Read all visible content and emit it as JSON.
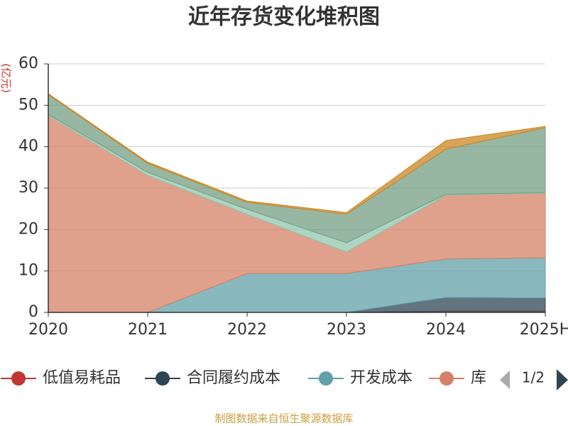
{
  "chart_data": {
    "type": "stacked_area",
    "title": "近年存货变化堆积图",
    "y_label": "(亿元)",
    "categories": [
      "2020",
      "2021",
      "2022",
      "2023",
      "2024",
      "2025H"
    ],
    "ylim": [
      0,
      60
    ],
    "yticks": [
      0,
      10,
      20,
      30,
      40,
      50,
      60
    ],
    "grid": true,
    "series": [
      {
        "name": "低值易耗品",
        "color": "#c23531",
        "values": [
          0,
          0,
          0,
          0,
          0.3,
          0.3
        ]
      },
      {
        "name": "合同履约成本",
        "color": "#2f4554",
        "values": [
          0,
          0,
          0,
          0,
          3.3,
          3.2
        ]
      },
      {
        "name": "开发成本",
        "color": "#61a0a8",
        "values": [
          0,
          0,
          9.4,
          9.4,
          9.3,
          9.7
        ]
      },
      {
        "name": "库",
        "color": "#d48265",
        "values": [
          47.5,
          33.1,
          14.3,
          5.2,
          15.4,
          15.6
        ]
      },
      {
        "color": "#91c7ae",
        "values": [
          0.3,
          0.7,
          1.2,
          2.2,
          0.2,
          0.1
        ]
      },
      {
        "color": "#749f83",
        "values": [
          4.8,
          2.2,
          1.7,
          6.9,
          10.9,
          15.7
        ]
      },
      {
        "color": "#ca8622",
        "values": [
          0.2,
          0.3,
          0.3,
          0.4,
          2.1,
          0.3
        ]
      }
    ],
    "legend_page": "1/2",
    "source": "制图数据来自恒生聚源数据库"
  }
}
